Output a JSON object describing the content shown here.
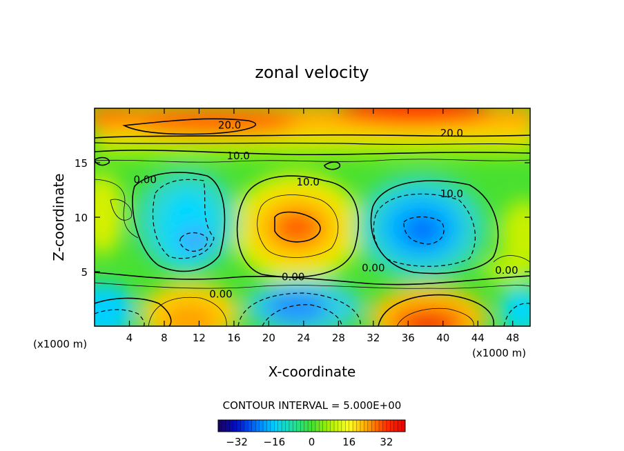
{
  "chart_data": {
    "type": "heatmap",
    "title": "zonal velocity",
    "xlabel": "X-coordinate",
    "ylabel": "Z-coordinate",
    "x_unit_left": "(x1000 m)",
    "x_unit_right": "(x1000 m)",
    "xlim": [
      0,
      50
    ],
    "ylim": [
      0,
      20
    ],
    "x_ticks": [
      4,
      8,
      12,
      16,
      20,
      24,
      28,
      32,
      36,
      40,
      44,
      48
    ],
    "y_ticks": [
      5,
      10,
      15
    ],
    "contour_interval_text": "CONTOUR INTERVAL = 5.000E+00",
    "colorbar": {
      "range": [
        -40,
        40
      ],
      "ticks": [
        -32,
        -16,
        0,
        16,
        32
      ],
      "colors": [
        "#1a0060",
        "#0010c8",
        "#0070ff",
        "#00d0ff",
        "#20e0a0",
        "#40e030",
        "#b0f000",
        "#ffff20",
        "#ffa000",
        "#ff3000",
        "#e80000"
      ]
    },
    "contour_labels": [
      {
        "text": "20.0",
        "x": 15.5,
        "z": 18.5
      },
      {
        "text": "20.0",
        "x": 41.0,
        "z": 17.8
      },
      {
        "text": "10.0",
        "x": 16.5,
        "z": 15.7
      },
      {
        "text": "10.0",
        "x": 24.5,
        "z": 13.3
      },
      {
        "text": "10.0",
        "x": 41.0,
        "z": 12.2
      },
      {
        "text": "0.00",
        "x": 5.8,
        "z": 13.5
      },
      {
        "text": "0.00",
        "x": 22.8,
        "z": 4.6
      },
      {
        "text": "0.00",
        "x": 32.0,
        "z": 5.4
      },
      {
        "text": "0.00",
        "x": 47.3,
        "z": 5.2
      },
      {
        "text": "0.00",
        "x": 14.5,
        "z": 3.0
      }
    ],
    "features": [
      {
        "x": 23.5,
        "z": 9.5,
        "value": 25
      },
      {
        "x": 37.5,
        "z": 9.0,
        "value": -18
      },
      {
        "x": 11.0,
        "z": 9.0,
        "value": -12
      },
      {
        "x": 24.0,
        "z": 2.0,
        "value": -15
      },
      {
        "x": 38.0,
        "z": 1.0,
        "value": 35
      },
      {
        "x": 10.0,
        "z": 1.5,
        "value": 25
      },
      {
        "x": 36.0,
        "z": 19.5,
        "value": 35
      },
      {
        "x": 14.0,
        "z": 18.8,
        "value": 28
      },
      {
        "x": 1.0,
        "z": 19.0,
        "value": 28
      }
    ]
  }
}
